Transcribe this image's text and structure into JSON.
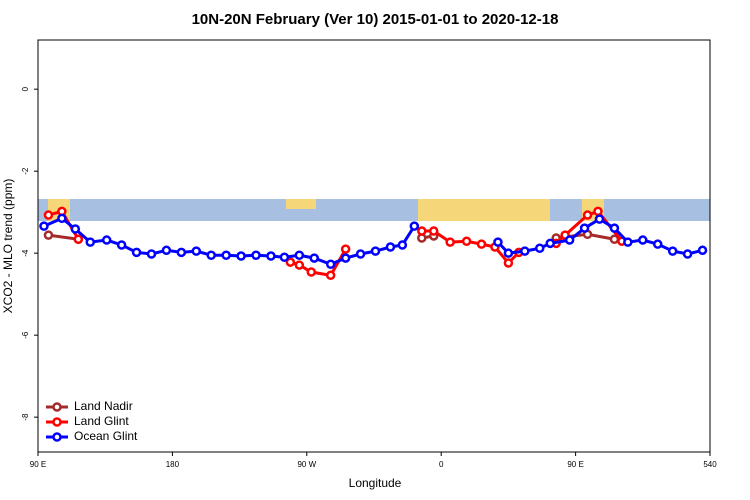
{
  "chart_data": {
    "type": "line",
    "title": "10N-20N February (Ver 10)   2015-01-01 to 2020-12-18",
    "x_label": "Longitude",
    "y_label": "XCO2 - MLO trend (ppm)",
    "xlim": [
      90,
      540
    ],
    "ylim": [
      -8.85,
      1.2
    ],
    "xticks": [
      {
        "value": 90,
        "label": "90 E"
      },
      180,
      {
        "value": 270,
        "label": "90 W"
      },
      {
        "value": 360,
        "label": "0"
      },
      {
        "value": 450,
        "label": "90 E"
      },
      540
    ],
    "yticks": [
      0,
      -2,
      -4,
      -6,
      -8
    ],
    "legend": "bottom-left",
    "series": [
      {
        "name": "Land Nadir",
        "color": "#a52a2a",
        "x": [
          97,
          117,
          null,
          347,
          355,
          null,
          437,
          458,
          476
        ],
        "values": [
          -3.56,
          -3.66,
          null,
          -3.63,
          -3.58,
          null,
          -3.63,
          -3.54,
          -3.66
        ]
      },
      {
        "name": "Land Glint",
        "color": "#ff0000",
        "x": [
          97,
          106,
          117,
          null,
          259,
          265,
          273,
          286,
          296,
          null,
          347,
          355,
          366,
          377,
          387,
          396,
          405,
          412,
          null,
          437,
          443,
          458,
          465,
          481
        ],
        "values": [
          -3.07,
          -2.98,
          -3.66,
          null,
          -4.22,
          -4.29,
          -4.46,
          -4.54,
          -3.9,
          null,
          -3.46,
          -3.46,
          -3.73,
          -3.71,
          -3.78,
          -3.85,
          -4.24,
          -3.98,
          null,
          -3.76,
          -3.56,
          -3.07,
          -2.98,
          -3.71
        ]
      },
      {
        "name": "Ocean Glint",
        "color": "#0000ff",
        "x": [
          94,
          106,
          115,
          125,
          136,
          146,
          156,
          166,
          176,
          186,
          196,
          206,
          216,
          226,
          236,
          246,
          255,
          265,
          275,
          286,
          296,
          306,
          316,
          326,
          334,
          342,
          null,
          398,
          405,
          416,
          426,
          433,
          446,
          456,
          466,
          476,
          485,
          495,
          505,
          515,
          525,
          535
        ],
        "values": [
          -3.34,
          -3.15,
          -3.41,
          -3.73,
          -3.68,
          -3.8,
          -3.98,
          -4.02,
          -3.93,
          -3.98,
          -3.95,
          -4.05,
          -4.05,
          -4.07,
          -4.05,
          -4.07,
          -4.1,
          -4.05,
          -4.12,
          -4.27,
          -4.12,
          -4.02,
          -3.95,
          -3.85,
          -3.8,
          -3.34,
          null,
          -3.73,
          -4.0,
          -3.95,
          -3.88,
          -3.76,
          -3.68,
          -3.39,
          -3.17,
          -3.39,
          -3.73,
          -3.68,
          -3.78,
          -3.95,
          -4.02,
          -3.93
        ]
      }
    ]
  }
}
